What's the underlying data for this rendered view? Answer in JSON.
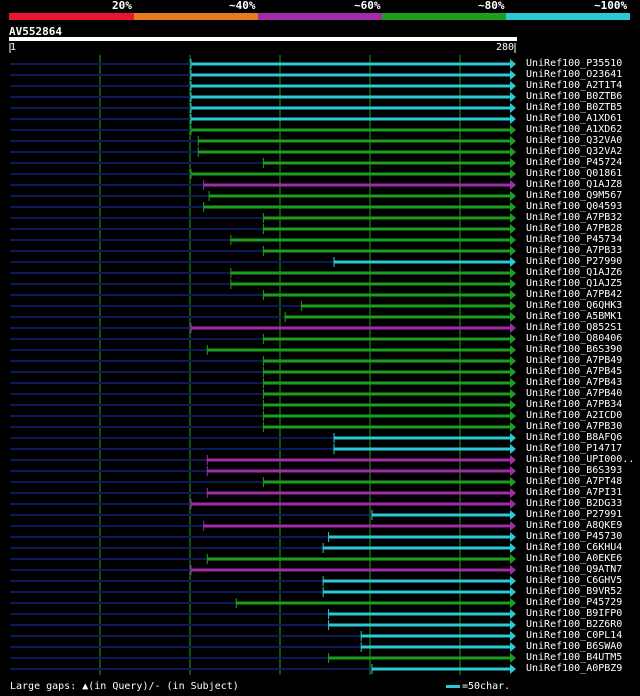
{
  "legend": {
    "labels": [
      "20%",
      "~40%",
      "~60%",
      "~80%",
      "~100%"
    ],
    "colors": [
      "#e8162e",
      "#e87a1e",
      "#a02ca8",
      "#1e9e1e",
      "#2cc8d4"
    ]
  },
  "query": {
    "id": "AV552864",
    "start_label": "1",
    "end_label": "280",
    "length": 280
  },
  "hits": [
    {
      "id": "UniRef100_P35510",
      "start": 101,
      "end": 280,
      "color": "cyan",
      "gaps": []
    },
    {
      "id": "UniRef100_O23641",
      "start": 101,
      "end": 280,
      "color": "cyan",
      "gaps": []
    },
    {
      "id": "UniRef100_A2T1T4",
      "start": 101,
      "end": 280,
      "color": "cyan",
      "gaps": []
    },
    {
      "id": "UniRef100_B0ZTB6",
      "start": 101,
      "end": 280,
      "color": "cyan",
      "gaps": []
    },
    {
      "id": "UniRef100_B0ZTB5",
      "start": 101,
      "end": 280,
      "color": "cyan",
      "gaps": []
    },
    {
      "id": "UniRef100_A1XD61",
      "start": 101,
      "end": 280,
      "color": "cyan",
      "gaps": []
    },
    {
      "id": "UniRef100_A1XD62",
      "start": 101,
      "end": 280,
      "color": "green",
      "gaps": []
    },
    {
      "id": "UniRef100_Q32VA0",
      "start": 105,
      "end": 280,
      "color": "green",
      "gaps": []
    },
    {
      "id": "UniRef100_Q32VA2",
      "start": 105,
      "end": 280,
      "color": "green",
      "gaps": []
    },
    {
      "id": "UniRef100_P45724",
      "start": 141,
      "end": 280,
      "color": "green",
      "gaps": []
    },
    {
      "id": "UniRef100_Q01861",
      "start": 101,
      "end": 280,
      "color": "green",
      "gaps": []
    },
    {
      "id": "UniRef100_Q1AJZ8",
      "start": 108,
      "end": 280,
      "color": "purple",
      "gaps": []
    },
    {
      "id": "UniRef100_Q9M567",
      "start": 111,
      "end": 280,
      "color": "green",
      "gaps": []
    },
    {
      "id": "UniRef100_Q04593",
      "start": 108,
      "end": 280,
      "color": "green",
      "gaps": []
    },
    {
      "id": "UniRef100_A7PB32",
      "start": 141,
      "end": 280,
      "color": "green",
      "gaps": []
    },
    {
      "id": "UniRef100_A7PB28",
      "start": 141,
      "end": 280,
      "color": "green",
      "gaps": []
    },
    {
      "id": "UniRef100_P45734",
      "start": 123,
      "end": 280,
      "color": "green",
      "gaps": []
    },
    {
      "id": "UniRef100_A7PB33",
      "start": 141,
      "end": 280,
      "color": "green",
      "gaps": []
    },
    {
      "id": "UniRef100_P27990",
      "start": 180,
      "end": 280,
      "color": "cyan",
      "gaps": []
    },
    {
      "id": "UniRef100_Q1AJZ6",
      "start": 123,
      "end": 280,
      "color": "green",
      "gaps": []
    },
    {
      "id": "UniRef100_Q1AJZ5",
      "start": 123,
      "end": 280,
      "color": "green",
      "gaps": []
    },
    {
      "id": "UniRef100_A7PB42",
      "start": 141,
      "end": 280,
      "color": "green",
      "gaps": []
    },
    {
      "id": "UniRef100_Q6QHK3",
      "start": 162,
      "end": 280,
      "color": "green",
      "gaps": []
    },
    {
      "id": "UniRef100_A5BMK1",
      "start": 153,
      "end": 280,
      "color": "green",
      "gaps": []
    },
    {
      "id": "UniRef100_Q852S1",
      "start": 101,
      "end": 280,
      "color": "purple",
      "gaps": []
    },
    {
      "id": "UniRef100_Q80406",
      "start": 141,
      "end": 280,
      "color": "green",
      "gaps": []
    },
    {
      "id": "UniRef100_B6S390",
      "start": 110,
      "end": 280,
      "color": "green",
      "gaps": []
    },
    {
      "id": "UniRef100_A7PB49",
      "start": 141,
      "end": 280,
      "color": "green",
      "gaps": []
    },
    {
      "id": "UniRef100_A7PB45",
      "start": 141,
      "end": 280,
      "color": "green",
      "gaps": []
    },
    {
      "id": "UniRef100_A7PB43",
      "start": 141,
      "end": 280,
      "color": "green",
      "gaps": []
    },
    {
      "id": "UniRef100_A7PB40",
      "start": 141,
      "end": 280,
      "color": "green",
      "gaps": []
    },
    {
      "id": "UniRef100_A7PB34",
      "start": 141,
      "end": 280,
      "color": "green",
      "gaps": []
    },
    {
      "id": "UniRef100_A2ICD0",
      "start": 141,
      "end": 280,
      "color": "green",
      "gaps": []
    },
    {
      "id": "UniRef100_A7PB30",
      "start": 141,
      "end": 280,
      "color": "green",
      "gaps": []
    },
    {
      "id": "UniRef100_B8AFQ6",
      "start": 180,
      "end": 280,
      "color": "cyan",
      "gaps": []
    },
    {
      "id": "UniRef100_P14717",
      "start": 180,
      "end": 280,
      "color": "cyan",
      "gaps": []
    },
    {
      "id": "UniRef100_UPI000..",
      "start": 110,
      "end": 280,
      "color": "purple",
      "gaps": []
    },
    {
      "id": "UniRef100_B6S393",
      "start": 110,
      "end": 280,
      "color": "purple",
      "gaps": []
    },
    {
      "id": "UniRef100_A7PT48",
      "start": 141,
      "end": 280,
      "color": "green",
      "gaps": []
    },
    {
      "id": "UniRef100_A7PI31",
      "start": 110,
      "end": 280,
      "color": "purple",
      "gaps": []
    },
    {
      "id": "UniRef100_B2DG33",
      "start": 101,
      "end": 280,
      "color": "purple",
      "gaps": []
    },
    {
      "id": "UniRef100_P27991",
      "start": 201,
      "end": 280,
      "color": "cyan",
      "gaps": []
    },
    {
      "id": "UniRef100_A8QKE9",
      "start": 108,
      "end": 280,
      "color": "purple",
      "gaps": []
    },
    {
      "id": "UniRef100_P45730",
      "start": 177,
      "end": 280,
      "color": "cyan",
      "gaps": []
    },
    {
      "id": "UniRef100_C6KHU4",
      "start": 174,
      "end": 280,
      "color": "cyan",
      "gaps": []
    },
    {
      "id": "UniRef100_A0EKE6",
      "start": 110,
      "end": 280,
      "color": "green",
      "gaps": []
    },
    {
      "id": "UniRef100_Q9ATN7",
      "start": 101,
      "end": 280,
      "color": "purple",
      "gaps": []
    },
    {
      "id": "UniRef100_C6GHV5",
      "start": 174,
      "end": 280,
      "color": "cyan",
      "gaps": []
    },
    {
      "id": "UniRef100_B9VR52",
      "start": 174,
      "end": 280,
      "color": "cyan",
      "gaps": []
    },
    {
      "id": "UniRef100_P45729",
      "start": 126,
      "end": 280,
      "color": "green",
      "gaps": []
    },
    {
      "id": "UniRef100_B9IFP0",
      "start": 177,
      "end": 280,
      "color": "cyan",
      "gaps": []
    },
    {
      "id": "UniRef100_B2Z6R0",
      "start": 177,
      "end": 280,
      "color": "cyan",
      "gaps": []
    },
    {
      "id": "UniRef100_C0PL14",
      "start": 195,
      "end": 280,
      "color": "cyan",
      "gaps": []
    },
    {
      "id": "UniRef100_B6SWA0",
      "start": 195,
      "end": 280,
      "color": "cyan",
      "gaps": []
    },
    {
      "id": "UniRef100_B4UTM5",
      "start": 177,
      "end": 280,
      "color": "green",
      "gaps": []
    },
    {
      "id": "UniRef100_A0PBZ9",
      "start": 201,
      "end": 280,
      "color": "cyan",
      "gaps": []
    }
  ],
  "footer": {
    "gaps_text": "Large gaps: ▲(in Query)/‐ (in Subject)",
    "scale_text": "=50char."
  }
}
